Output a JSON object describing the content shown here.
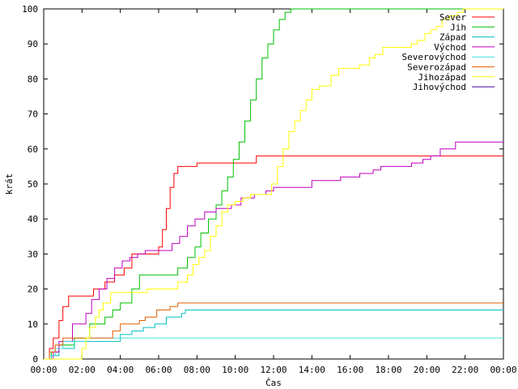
{
  "chart_data": {
    "type": "line",
    "title": "",
    "xlabel": "Čas",
    "ylabel": "krát",
    "xlim": [
      0,
      24
    ],
    "ylim": [
      0,
      100
    ],
    "x_tick_labels": [
      "00:00",
      "02:00",
      "04:00",
      "06:00",
      "08:00",
      "10:00",
      "12:00",
      "14:00",
      "16:00",
      "18:00",
      "20:00",
      "22:00",
      "00:00"
    ],
    "y_ticks": [
      0,
      10,
      20,
      30,
      40,
      50,
      60,
      70,
      80,
      90,
      100
    ],
    "grid": false,
    "legend_position": "top-right",
    "step": true,
    "series": [
      {
        "name": "Sever",
        "color": "#ff0000",
        "points": [
          [
            0,
            0
          ],
          [
            0.3,
            3
          ],
          [
            0.5,
            6
          ],
          [
            0.8,
            11
          ],
          [
            1.0,
            15
          ],
          [
            1.3,
            18
          ],
          [
            2.0,
            18
          ],
          [
            2.6,
            20
          ],
          [
            3.2,
            22
          ],
          [
            3.7,
            24
          ],
          [
            4.2,
            26
          ],
          [
            4.6,
            30
          ],
          [
            5.8,
            30
          ],
          [
            6.0,
            32
          ],
          [
            6.2,
            37
          ],
          [
            6.4,
            43
          ],
          [
            6.6,
            49
          ],
          [
            6.8,
            53
          ],
          [
            7.0,
            55
          ],
          [
            7.8,
            55
          ],
          [
            8.0,
            56
          ],
          [
            11.0,
            56
          ],
          [
            11.1,
            58
          ],
          [
            24,
            58
          ]
        ]
      },
      {
        "name": "Jih",
        "color": "#00c000",
        "points": [
          [
            0,
            0
          ],
          [
            0.4,
            2
          ],
          [
            0.8,
            4
          ],
          [
            1.6,
            6
          ],
          [
            2.4,
            10
          ],
          [
            3.2,
            12
          ],
          [
            3.6,
            14
          ],
          [
            4.0,
            16
          ],
          [
            4.6,
            20
          ],
          [
            5.0,
            24
          ],
          [
            6.3,
            24
          ],
          [
            7.0,
            26
          ],
          [
            7.5,
            29
          ],
          [
            7.9,
            32
          ],
          [
            8.2,
            36
          ],
          [
            8.6,
            40
          ],
          [
            9.0,
            44
          ],
          [
            9.3,
            48
          ],
          [
            9.6,
            52
          ],
          [
            9.9,
            57
          ],
          [
            10.2,
            62
          ],
          [
            10.5,
            68
          ],
          [
            10.8,
            74
          ],
          [
            11.1,
            80
          ],
          [
            11.4,
            86
          ],
          [
            11.7,
            90
          ],
          [
            12.0,
            94
          ],
          [
            12.3,
            97
          ],
          [
            12.6,
            99
          ],
          [
            12.9,
            100
          ],
          [
            24,
            100
          ]
        ]
      },
      {
        "name": "Západ",
        "color": "#00c0c0",
        "points": [
          [
            0,
            0
          ],
          [
            0.4,
            1
          ],
          [
            0.8,
            3
          ],
          [
            1.6,
            5
          ],
          [
            3.5,
            5
          ],
          [
            4.0,
            7
          ],
          [
            4.6,
            8
          ],
          [
            5.2,
            9
          ],
          [
            5.8,
            10
          ],
          [
            6.4,
            12
          ],
          [
            7.2,
            13
          ],
          [
            7.4,
            14
          ],
          [
            24,
            14
          ]
        ]
      },
      {
        "name": "Východ",
        "color": "#c000c0",
        "points": [
          [
            0,
            0
          ],
          [
            0.5,
            2
          ],
          [
            0.8,
            5
          ],
          [
            1.5,
            10
          ],
          [
            2.2,
            13
          ],
          [
            2.5,
            17
          ],
          [
            2.9,
            20
          ],
          [
            3.3,
            23
          ],
          [
            3.7,
            26
          ],
          [
            4.1,
            28
          ],
          [
            4.5,
            29
          ],
          [
            4.9,
            30
          ],
          [
            5.3,
            31
          ],
          [
            6.4,
            31
          ],
          [
            6.7,
            33
          ],
          [
            7.1,
            35
          ],
          [
            7.5,
            38
          ],
          [
            7.9,
            40
          ],
          [
            8.4,
            42
          ],
          [
            9.0,
            43
          ],
          [
            9.8,
            44
          ],
          [
            10.3,
            46
          ],
          [
            11.0,
            47
          ],
          [
            11.6,
            48
          ],
          [
            12.0,
            49
          ],
          [
            13.5,
            49
          ],
          [
            14.0,
            51
          ],
          [
            15.5,
            52
          ],
          [
            16.5,
            53
          ],
          [
            17.2,
            54
          ],
          [
            17.6,
            55
          ],
          [
            19.2,
            56
          ],
          [
            19.8,
            57
          ],
          [
            20.2,
            58
          ],
          [
            20.7,
            60
          ],
          [
            21.5,
            62
          ],
          [
            24,
            62
          ]
        ]
      },
      {
        "name": "Severovýchod",
        "color": "#40e0e0",
        "points": [
          [
            0,
            0
          ],
          [
            0.3,
            1
          ],
          [
            0.6,
            3
          ],
          [
            1.0,
            5
          ],
          [
            1.7,
            5
          ],
          [
            2.2,
            6
          ],
          [
            24,
            6
          ]
        ]
      },
      {
        "name": "Severozápad",
        "color": "#e06000",
        "points": [
          [
            0,
            0
          ],
          [
            0.3,
            2
          ],
          [
            0.6,
            4
          ],
          [
            1.0,
            6
          ],
          [
            3.4,
            6
          ],
          [
            3.6,
            8
          ],
          [
            4.0,
            10
          ],
          [
            5.0,
            11
          ],
          [
            5.3,
            12
          ],
          [
            5.9,
            14
          ],
          [
            6.6,
            15
          ],
          [
            7.0,
            16
          ],
          [
            24,
            16
          ]
        ]
      },
      {
        "name": "Jihozápad",
        "color": "#ffff00",
        "points": [
          [
            0,
            0
          ],
          [
            1.9,
            0
          ],
          [
            2.0,
            3
          ],
          [
            2.2,
            6
          ],
          [
            2.4,
            9
          ],
          [
            2.7,
            12
          ],
          [
            2.9,
            14
          ],
          [
            3.1,
            16
          ],
          [
            3.5,
            19
          ],
          [
            5.2,
            19
          ],
          [
            5.4,
            20
          ],
          [
            6.2,
            20
          ],
          [
            7.0,
            22
          ],
          [
            7.5,
            24
          ],
          [
            7.8,
            27
          ],
          [
            8.1,
            29
          ],
          [
            8.4,
            31
          ],
          [
            8.7,
            35
          ],
          [
            9.0,
            38
          ],
          [
            9.3,
            42
          ],
          [
            9.6,
            44
          ],
          [
            10.0,
            45
          ],
          [
            10.4,
            46
          ],
          [
            10.8,
            47
          ],
          [
            11.6,
            47
          ],
          [
            11.9,
            50
          ],
          [
            12.2,
            55
          ],
          [
            12.5,
            60
          ],
          [
            12.8,
            65
          ],
          [
            13.1,
            68
          ],
          [
            13.4,
            71
          ],
          [
            13.7,
            74
          ],
          [
            14.0,
            77
          ],
          [
            14.4,
            78
          ],
          [
            15.0,
            81
          ],
          [
            15.4,
            83
          ],
          [
            16.3,
            83
          ],
          [
            16.5,
            84
          ],
          [
            17.0,
            86
          ],
          [
            17.3,
            87
          ],
          [
            17.7,
            89
          ],
          [
            19.0,
            89
          ],
          [
            19.2,
            90
          ],
          [
            19.5,
            91
          ],
          [
            19.9,
            93
          ],
          [
            20.2,
            94
          ],
          [
            20.5,
            95
          ],
          [
            20.8,
            97
          ],
          [
            21.2,
            98
          ],
          [
            21.6,
            99
          ],
          [
            21.9,
            100
          ],
          [
            24,
            100
          ]
        ]
      },
      {
        "name": "Jihovýchod",
        "color": "#4000a0",
        "points": []
      }
    ]
  }
}
